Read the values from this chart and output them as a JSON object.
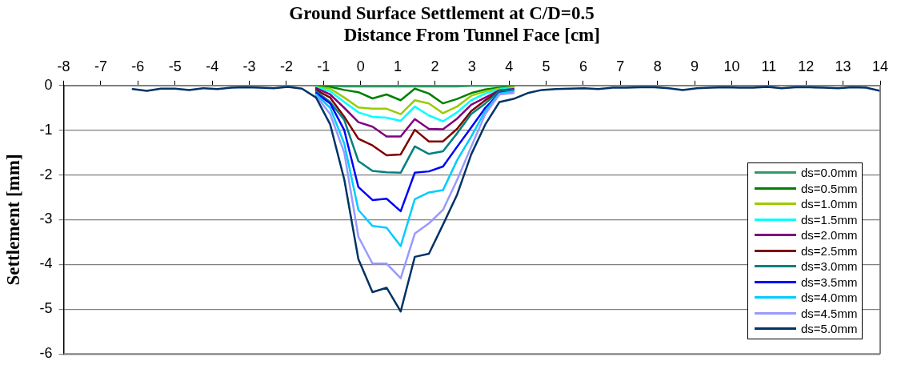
{
  "chart_data": {
    "type": "line",
    "title": "Ground Surface Settlement at C/D=0.5",
    "xlabel": "Distance From Tunnel Face [cm]",
    "ylabel": "Settlement [mm]",
    "x": [
      -6.14,
      -5.76,
      -5.38,
      -5,
      -4.62,
      -4.24,
      -3.86,
      -3.48,
      -3.1,
      -2.72,
      -2.34,
      -1.96,
      -1.58,
      -1.2,
      -0.82,
      -0.44,
      -0.06,
      0.32,
      0.7,
      1.08,
      1.46,
      1.84,
      2.22,
      2.6,
      2.98,
      3.36,
      3.74,
      4.12,
      4.5,
      4.88,
      5.26,
      5.64,
      6.02,
      6.4,
      6.78,
      7.16,
      7.54,
      7.92,
      8.3,
      8.68,
      9.06,
      9.44,
      9.82,
      10.2,
      10.58,
      10.96,
      11.34,
      11.72,
      12.1,
      12.48,
      12.86,
      13.24,
      13.62,
      14.0
    ],
    "xlim": [
      -8,
      14
    ],
    "xticks": [
      -8,
      -7,
      -6,
      -5,
      -4,
      -3,
      -2,
      -1,
      0,
      1,
      2,
      3,
      4,
      5,
      6,
      7,
      8,
      9,
      10,
      11,
      12,
      13,
      14
    ],
    "ylim": [
      -6,
      0
    ],
    "yticks": [
      -6,
      -5,
      -4,
      -3,
      -2,
      -1,
      0
    ],
    "grid": "y",
    "legend": "bottom right",
    "marker": "none",
    "line_style": "solid",
    "series": [
      {
        "name": "ds=0.0mm",
        "color": "#339966",
        "values": [
          null,
          null,
          null,
          null,
          null,
          null,
          null,
          null,
          null,
          null,
          null,
          null,
          null,
          -0.01,
          -0.01,
          -0.02,
          -0.02,
          -0.02,
          -0.02,
          -0.02,
          -0.02,
          -0.02,
          -0.02,
          -0.02,
          -0.01,
          -0.01,
          -0.01,
          -0.01,
          null,
          null,
          null,
          null,
          null,
          null,
          null,
          null,
          null,
          null,
          null,
          null,
          null,
          null,
          null,
          null,
          null,
          null,
          null,
          null,
          null,
          null,
          null,
          null,
          null,
          null
        ]
      },
      {
        "name": "ds=0.5mm",
        "color": "#008000",
        "values": [
          null,
          null,
          null,
          null,
          null,
          null,
          null,
          null,
          null,
          null,
          null,
          null,
          null,
          -0.02,
          -0.03,
          -0.1,
          -0.15,
          -0.29,
          -0.2,
          -0.33,
          -0.07,
          -0.18,
          -0.4,
          -0.3,
          -0.17,
          -0.09,
          -0.05,
          -0.03,
          null,
          null,
          null,
          null,
          null,
          null,
          null,
          null,
          null,
          null,
          null,
          null,
          null,
          null,
          null,
          null,
          null,
          null,
          null,
          null,
          null,
          null,
          null,
          null,
          null,
          null
        ]
      },
      {
        "name": "ds=1.0mm",
        "color": "#99cc00",
        "values": [
          null,
          null,
          null,
          null,
          null,
          null,
          null,
          null,
          null,
          null,
          null,
          null,
          null,
          -0.03,
          -0.07,
          -0.27,
          -0.49,
          -0.52,
          -0.52,
          -0.64,
          -0.33,
          -0.4,
          -0.62,
          -0.47,
          -0.23,
          -0.13,
          -0.07,
          -0.04,
          null,
          null,
          null,
          null,
          null,
          null,
          null,
          null,
          null,
          null,
          null,
          null,
          null,
          null,
          null,
          null,
          null,
          null,
          null,
          null,
          null,
          null,
          null,
          null,
          null,
          null
        ]
      },
      {
        "name": "ds=1.5mm",
        "color": "#00ffff",
        "values": [
          null,
          null,
          null,
          null,
          null,
          null,
          null,
          null,
          null,
          null,
          null,
          null,
          null,
          -0.04,
          -0.13,
          -0.37,
          -0.6,
          -0.7,
          -0.72,
          -0.79,
          -0.47,
          -0.67,
          -0.8,
          -0.6,
          -0.33,
          -0.18,
          -0.09,
          -0.06,
          null,
          null,
          null,
          null,
          null,
          null,
          null,
          null,
          null,
          null,
          null,
          null,
          null,
          null,
          null,
          null,
          null,
          null,
          null,
          null,
          null,
          null,
          null,
          null,
          null,
          null
        ]
      },
      {
        "name": "ds=2.0mm",
        "color": "#800080",
        "values": [
          null,
          null,
          null,
          null,
          null,
          null,
          null,
          null,
          null,
          null,
          null,
          null,
          null,
          -0.06,
          -0.2,
          -0.5,
          -0.82,
          -0.92,
          -1.14,
          -1.14,
          -0.75,
          -0.97,
          -0.98,
          -0.74,
          -0.43,
          -0.27,
          -0.11,
          -0.08,
          null,
          null,
          null,
          null,
          null,
          null,
          null,
          null,
          null,
          null,
          null,
          null,
          null,
          null,
          null,
          null,
          null,
          null,
          null,
          null,
          null,
          null,
          null,
          null,
          null,
          null
        ]
      },
      {
        "name": "ds=2.5mm",
        "color": "#800000",
        "values": [
          null,
          null,
          null,
          null,
          null,
          null,
          null,
          null,
          null,
          null,
          null,
          null,
          null,
          -0.1,
          -0.27,
          -0.7,
          -1.19,
          -1.34,
          -1.56,
          -1.54,
          -0.99,
          -1.25,
          -1.25,
          -0.97,
          -0.57,
          -0.33,
          -0.13,
          -0.1,
          null,
          null,
          null,
          null,
          null,
          null,
          null,
          null,
          null,
          null,
          null,
          null,
          null,
          null,
          null,
          null,
          null,
          null,
          null,
          null,
          null,
          null,
          null,
          null,
          null,
          null
        ]
      },
      {
        "name": "ds=3.0mm",
        "color": "#008080",
        "values": [
          null,
          null,
          null,
          null,
          null,
          null,
          null,
          null,
          null,
          null,
          null,
          null,
          null,
          -0.13,
          -0.37,
          -0.77,
          -1.69,
          -1.91,
          -1.94,
          -1.95,
          -1.36,
          -1.53,
          -1.47,
          -1.07,
          -0.64,
          -0.4,
          -0.13,
          -0.1,
          null,
          null,
          null,
          null,
          null,
          null,
          null,
          null,
          null,
          null,
          null,
          null,
          null,
          null,
          null,
          null,
          null,
          null,
          null,
          null,
          null,
          null,
          null,
          null,
          null,
          null
        ]
      },
      {
        "name": "ds=3.5mm",
        "color": "#0000ff",
        "values": [
          null,
          null,
          null,
          null,
          null,
          null,
          null,
          null,
          null,
          null,
          null,
          null,
          null,
          -0.17,
          -0.4,
          -1.0,
          -2.27,
          -2.56,
          -2.53,
          -2.81,
          -1.95,
          -1.92,
          -1.81,
          -1.37,
          -0.94,
          -0.5,
          -0.17,
          -0.13,
          null,
          null,
          null,
          null,
          null,
          null,
          null,
          null,
          null,
          null,
          null,
          null,
          null,
          null,
          null,
          null,
          null,
          null,
          null,
          null,
          null,
          null,
          null,
          null,
          null,
          null
        ]
      },
      {
        "name": "ds=4.0mm",
        "color": "#00ccff",
        "values": [
          null,
          null,
          null,
          null,
          null,
          null,
          null,
          null,
          null,
          null,
          null,
          null,
          null,
          -0.2,
          -0.5,
          -1.3,
          -2.78,
          -3.14,
          -3.18,
          -3.59,
          -2.54,
          -2.39,
          -2.34,
          -1.67,
          -1.14,
          -0.57,
          -0.18,
          -0.13,
          null,
          null,
          null,
          null,
          null,
          null,
          null,
          null,
          null,
          null,
          null,
          null,
          null,
          null,
          null,
          null,
          null,
          null,
          null,
          null,
          null,
          null,
          null,
          null,
          null,
          null
        ]
      },
      {
        "name": "ds=4.5mm",
        "color": "#9999ff",
        "values": [
          null,
          null,
          null,
          null,
          null,
          null,
          null,
          null,
          null,
          null,
          null,
          null,
          null,
          -0.23,
          -0.64,
          -1.5,
          -3.38,
          -3.98,
          -3.98,
          -4.31,
          -3.31,
          -3.08,
          -2.78,
          -2.11,
          -1.37,
          -0.64,
          -0.2,
          -0.17,
          null,
          null,
          null,
          null,
          null,
          null,
          null,
          null,
          null,
          null,
          null,
          null,
          null,
          null,
          null,
          null,
          null,
          null,
          null,
          null,
          null,
          null,
          null,
          null,
          null,
          null
        ]
      },
      {
        "name": "ds=5.0mm",
        "color": "#003366",
        "values": [
          -0.08,
          -0.12,
          -0.07,
          -0.07,
          -0.1,
          -0.06,
          -0.08,
          -0.05,
          -0.04,
          -0.05,
          -0.06,
          -0.03,
          -0.07,
          -0.27,
          -0.87,
          -2.1,
          -3.88,
          -4.62,
          -4.52,
          -5.05,
          -3.83,
          -3.76,
          -3.11,
          -2.44,
          -1.54,
          -0.87,
          -0.37,
          -0.3,
          -0.17,
          -0.1,
          -0.08,
          -0.07,
          -0.06,
          -0.08,
          -0.05,
          -0.05,
          -0.04,
          -0.04,
          -0.06,
          -0.1,
          -0.06,
          -0.05,
          -0.04,
          -0.05,
          -0.05,
          -0.03,
          -0.06,
          -0.04,
          -0.04,
          -0.05,
          -0.06,
          -0.04,
          -0.05,
          -0.12
        ]
      }
    ]
  }
}
